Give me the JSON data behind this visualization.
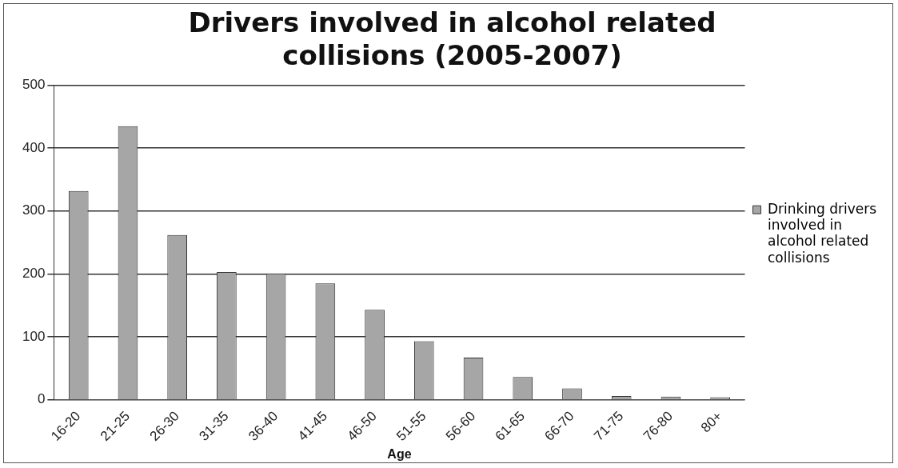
{
  "chart_data": {
    "type": "bar",
    "title": "Drivers involved in alcohol related collisions (2005-2007)",
    "xlabel": "Age",
    "categories": [
      "16-20",
      "21-25",
      "26-30",
      "31-35",
      "36-40",
      "41-45",
      "46-50",
      "51-55",
      "56-60",
      "61-65",
      "66-70",
      "71-75",
      "76-80",
      "80+"
    ],
    "series": [
      {
        "name": "Drinking drivers involved in alcohol related collisions",
        "color": "#a6a6a6",
        "values": [
          332,
          435,
          262,
          203,
          201,
          185,
          143,
          93,
          67,
          36,
          18,
          6,
          5,
          4
        ]
      }
    ],
    "ylim": [
      0,
      500
    ],
    "yticks": [
      0,
      100,
      200,
      300,
      400,
      500
    ],
    "grid": "y",
    "legend": "right"
  }
}
